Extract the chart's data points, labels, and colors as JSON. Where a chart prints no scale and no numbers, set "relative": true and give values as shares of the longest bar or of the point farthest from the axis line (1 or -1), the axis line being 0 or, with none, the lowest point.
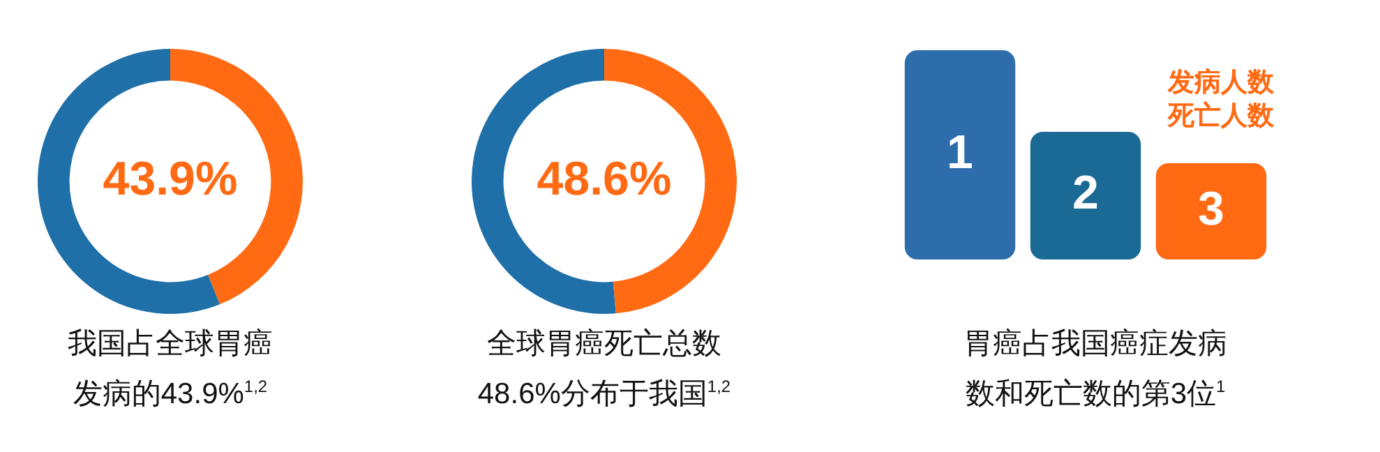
{
  "chart_data": [
    {
      "type": "donut",
      "title": "我国占全球胃癌发病的43.9%$^{1,2}$",
      "categories": [
        null,
        null
      ],
      "values": [
        43.9,
        56.1
      ],
      "colors": [
        "#ff6a13",
        "#1f6fa8"
      ],
      "value_labels": [
        "43.9%",
        null
      ]
    },
    {
      "type": "donut",
      "title": "全球胃癌死亡总数48.6%分布于我国$^{1,2}$",
      "categories": [
        null,
        null
      ],
      "values": [
        48.6,
        51.4
      ],
      "colors": [
        "#ff6a13",
        "#1f6fa8"
      ],
      "value_labels": [
        "48.6%",
        null
      ]
    },
    {
      "type": "bar",
      "relative": true,
      "title": "胃癌占我国癌症发病数和死亡数的第3位$^{1}$",
      "categories": [
        "1",
        "2",
        "3"
      ],
      "values": [
        1,
        0.61,
        0.46
      ],
      "colors": [
        "#2d6dab",
        "#1b6a95",
        "#ff6a13"
      ],
      "annotations": [
        "发病人数死亡人数"
      ]
    }
  ]
}
